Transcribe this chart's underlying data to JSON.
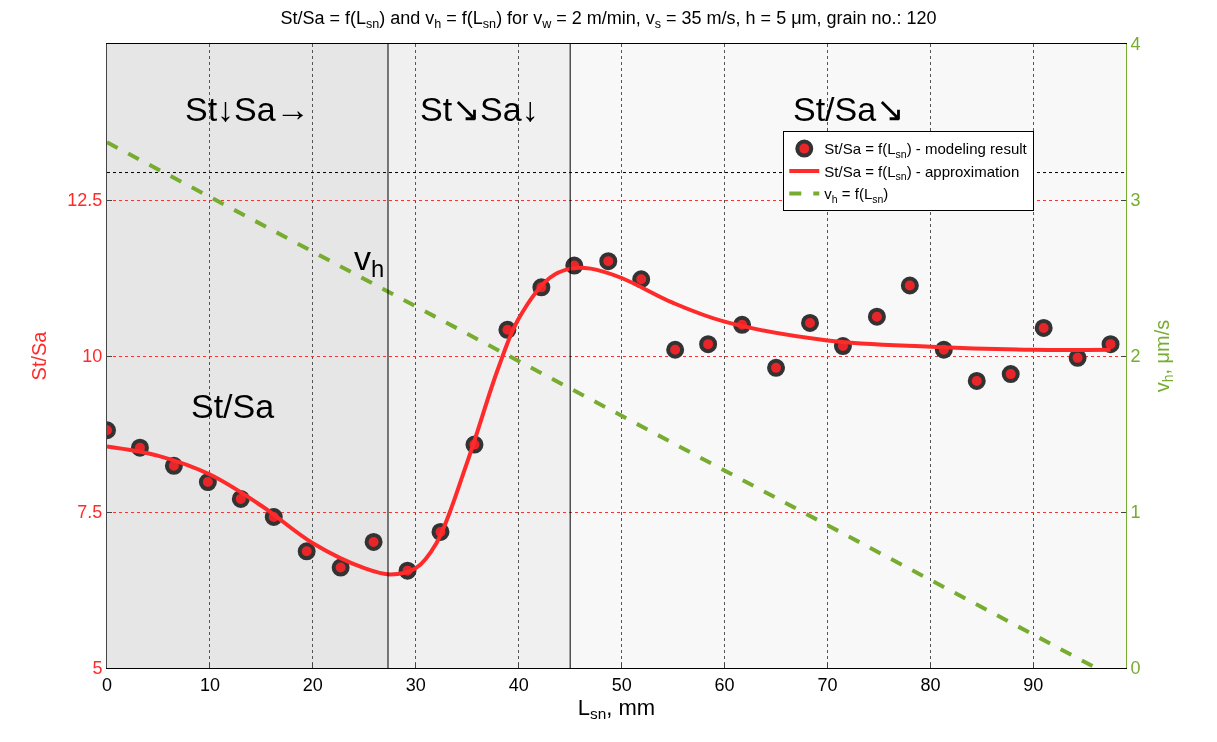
{
  "chart_data": {
    "type": "scatter",
    "title": "St/Sa = f(L$_{sn}$) and v$_{h}$ = f(L$_{sn}$) for v$_{w}$ = 2 m/min, v$_{s}$ = 35 m/s, h = 5 μm, grain no.: 120",
    "xlabel": "L$_{sn}$, mm",
    "ylabel": "St/Sa",
    "y2label": "v$_{h}$, μm/s",
    "xlim": [
      0,
      99
    ],
    "xticks": [
      0,
      10,
      20,
      30,
      40,
      50,
      60,
      70,
      80,
      90
    ],
    "ylim": [
      5,
      15
    ],
    "yticks": [
      5,
      7.5,
      10,
      12.5
    ],
    "y2lim": [
      0,
      4
    ],
    "y2ticks": [
      0,
      1,
      2,
      3,
      4
    ],
    "grid": true,
    "legend": "top right",
    "series": [
      {
        "name": "St/Sa = f(L$_{sn}$) - modeling result",
        "color": "#e8262a",
        "marker": "circle",
        "x": [
          0,
          3.2,
          6.5,
          9.8,
          13.0,
          16.2,
          19.4,
          22.7,
          25.9,
          29.2,
          32.4,
          35.7,
          38.9,
          42.2,
          45.4,
          48.7,
          51.9,
          55.2,
          58.4,
          61.7,
          65.0,
          68.3,
          71.5,
          74.8,
          78.0,
          81.3,
          84.5,
          87.8,
          91.0,
          94.3,
          97.5
        ],
        "values": [
          8.81,
          8.53,
          8.24,
          7.98,
          7.71,
          7.42,
          6.87,
          6.61,
          7.02,
          6.56,
          7.18,
          8.58,
          10.42,
          11.1,
          11.45,
          11.52,
          11.23,
          10.1,
          10.19,
          10.5,
          9.81,
          10.53,
          10.16,
          10.63,
          11.13,
          10.1,
          9.6,
          9.71,
          10.45,
          9.97,
          10.19
        ]
      },
      {
        "type": "line",
        "name": "St/Sa = f(L$_{sn}$) - approximation",
        "color": "#ff2a2a",
        "line_style": "solid",
        "x": [
          0,
          5,
          10,
          15,
          20,
          25,
          27.5,
          30,
          32,
          35,
          38,
          40,
          43,
          45,
          47,
          50,
          55,
          60,
          70,
          80,
          90,
          97.5
        ],
        "values": [
          8.55,
          8.4,
          8.1,
          7.6,
          7.0,
          6.6,
          6.5,
          6.6,
          7.0,
          8.3,
          9.8,
          10.6,
          11.25,
          11.4,
          11.4,
          11.25,
          10.85,
          10.55,
          10.25,
          10.15,
          10.1,
          10.1
        ]
      },
      {
        "type": "line",
        "name": "v$_{h}$ = f(L$_{sn}$)",
        "color": "#77ac30",
        "line_style": "dashed",
        "axis": "y2",
        "x": [
          0,
          96.1
        ],
        "values": [
          3.37,
          0
        ]
      }
    ],
    "bands": [
      {
        "axis": "x",
        "from": 0,
        "to": 27.3,
        "label": "St↓Sa→",
        "color": "#e6e6e6"
      },
      {
        "axis": "x",
        "from": 27.3,
        "to": 45,
        "label": "St↘Sa↓",
        "color": "#f0f0f0"
      },
      {
        "axis": "x",
        "from": 45,
        "to": 99,
        "label": "St/Sa↘",
        "color": "#f8f8f8"
      }
    ],
    "ref_lines": [
      {
        "axis": "x",
        "value": 27.3,
        "color": "#000000",
        "line_style": "solid"
      },
      {
        "axis": "x",
        "value": 45,
        "color": "#000000",
        "line_style": "solid"
      },
      {
        "axis": "y",
        "value": 12.94,
        "color": "#000000",
        "line_style": "dotted"
      }
    ],
    "annotations": [
      "v$_{h}$",
      "St/Sa"
    ]
  }
}
